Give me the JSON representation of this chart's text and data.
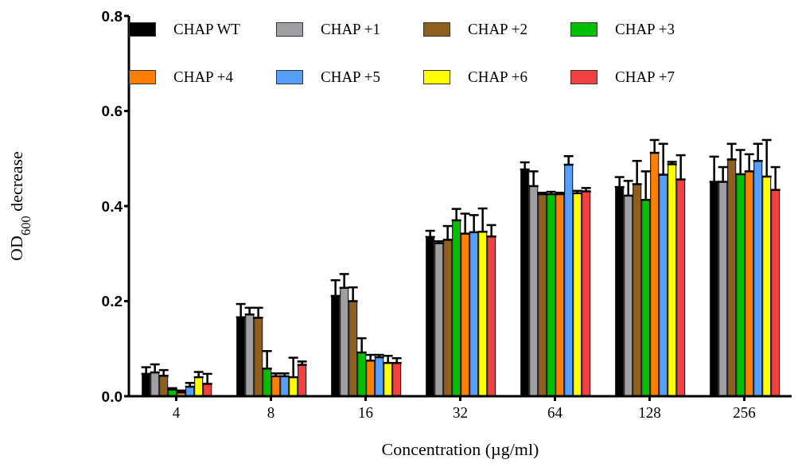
{
  "chart_data": {
    "type": "bar",
    "categories": [
      "4",
      "8",
      "16",
      "32",
      "64",
      "128",
      "256"
    ],
    "xlabel": "Concentration (µg/ml)",
    "ylabel": "OD$_{600}$ decrease",
    "ylim": [
      0,
      0.8
    ],
    "yticks": [
      {
        "value": 0,
        "label": "0.0"
      },
      0.2,
      0.4,
      0.6,
      0.8
    ],
    "legend": "top",
    "series": [
      {
        "name": "CHAP WT",
        "color": "#000000",
        "values": [
          0.047,
          0.166,
          0.211,
          0.335,
          0.477,
          0.44,
          0.451
        ],
        "errors": [
          [
            0.047,
            0.061
          ],
          [
            0.166,
            0.194
          ],
          [
            0.211,
            0.244
          ],
          [
            0.335,
            0.348
          ],
          [
            0.477,
            0.492
          ],
          [
            0.44,
            0.461
          ],
          [
            0.451,
            0.504
          ]
        ]
      },
      {
        "name": "CHAP +1",
        "color": "#a0a0a4",
        "values": [
          0.05,
          0.172,
          0.228,
          0.322,
          0.442,
          0.422,
          0.451
        ],
        "errors": [
          [
            0.05,
            0.067
          ],
          [
            0.172,
            0.186
          ],
          [
            0.228,
            0.257
          ],
          [
            0.322,
            0.326
          ],
          [
            0.442,
            0.473
          ],
          [
            0.422,
            0.453
          ],
          [
            0.451,
            0.482
          ]
        ]
      },
      {
        "name": "CHAP +2",
        "color": "#8f5f1f",
        "values": [
          0.043,
          0.165,
          0.2,
          0.329,
          0.425,
          0.446,
          0.498
        ],
        "errors": [
          [
            0.043,
            0.055
          ],
          [
            0.165,
            0.186
          ],
          [
            0.2,
            0.229
          ],
          [
            0.329,
            0.358
          ],
          [
            0.425,
            0.428
          ],
          [
            0.446,
            0.495
          ],
          [
            0.498,
            0.531
          ]
        ]
      },
      {
        "name": "CHAP +3",
        "color": "#00c000",
        "values": [
          0.014,
          0.058,
          0.092,
          0.37,
          0.425,
          0.413,
          0.467
        ],
        "errors": [
          [
            0.014,
            0.017
          ],
          [
            0.058,
            0.095
          ],
          [
            0.092,
            0.122
          ],
          [
            0.37,
            0.394
          ],
          [
            0.425,
            0.43
          ],
          [
            0.413,
            0.473
          ],
          [
            0.467,
            0.518
          ]
        ]
      },
      {
        "name": "CHAP +4",
        "color": "#ff8000",
        "values": [
          0.008,
          0.042,
          0.075,
          0.342,
          0.425,
          0.512,
          0.473
        ],
        "errors": [
          [
            0.008,
            0.012
          ],
          [
            0.042,
            0.048
          ],
          [
            0.075,
            0.087
          ],
          [
            0.342,
            0.384
          ],
          [
            0.425,
            0.428
          ],
          [
            0.512,
            0.539
          ],
          [
            0.473,
            0.509
          ]
        ]
      },
      {
        "name": "CHAP +5",
        "color": "#55a0ff",
        "values": [
          0.02,
          0.042,
          0.082,
          0.345,
          0.487,
          0.466,
          0.495
        ],
        "errors": [
          [
            0.02,
            0.028
          ],
          [
            0.042,
            0.048
          ],
          [
            0.082,
            0.087
          ],
          [
            0.345,
            0.381
          ],
          [
            0.487,
            0.505
          ],
          [
            0.466,
            0.531
          ],
          [
            0.495,
            0.531
          ]
        ]
      },
      {
        "name": "CHAP +6",
        "color": "#ffff00",
        "values": [
          0.04,
          0.04,
          0.07,
          0.346,
          0.427,
          0.488,
          0.462
        ],
        "errors": [
          [
            0.04,
            0.051
          ],
          [
            0.04,
            0.081
          ],
          [
            0.07,
            0.085
          ],
          [
            0.346,
            0.395
          ],
          [
            0.427,
            0.432
          ],
          [
            0.488,
            0.493
          ],
          [
            0.462,
            0.539
          ]
        ]
      },
      {
        "name": "CHAP +7",
        "color": "#f44040",
        "values": [
          0.026,
          0.066,
          0.07,
          0.336,
          0.431,
          0.456,
          0.434
        ],
        "errors": [
          [
            0.026,
            0.047
          ],
          [
            0.066,
            0.073
          ],
          [
            0.07,
            0.08
          ],
          [
            0.336,
            0.36
          ],
          [
            0.431,
            0.438
          ],
          [
            0.456,
            0.507
          ],
          [
            0.434,
            0.482
          ]
        ]
      }
    ]
  }
}
